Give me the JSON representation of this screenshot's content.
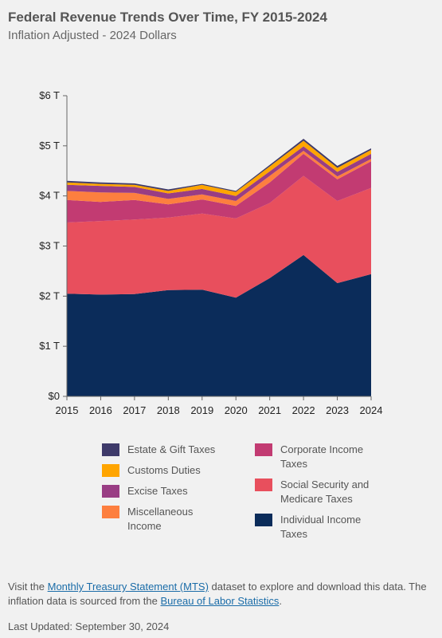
{
  "chart_data": {
    "type": "area",
    "stacked": true,
    "title": "Federal Revenue Trends Over Time, FY 2015-2024",
    "subtitle": "Inflation Adjusted - 2024 Dollars",
    "x": [
      "2015",
      "2016",
      "2017",
      "2018",
      "2019",
      "2020",
      "2021",
      "2022",
      "2023",
      "2024"
    ],
    "y_ticks": [
      "$0",
      "$1 T",
      "$2 T",
      "$3 T",
      "$4 T",
      "$5 T",
      "$6 T"
    ],
    "ylim": [
      0,
      6
    ],
    "grid": false,
    "legend_position": "bottom",
    "series": [
      {
        "name": "Individual Income Taxes",
        "color": "#0b2c5a",
        "values": [
          2.05,
          2.03,
          2.04,
          2.12,
          2.13,
          1.97,
          2.36,
          2.82,
          2.26,
          2.44
        ]
      },
      {
        "name": "Social Security and Medicare Taxes",
        "color": "#e84f5d",
        "values": [
          1.42,
          1.47,
          1.49,
          1.45,
          1.52,
          1.58,
          1.5,
          1.58,
          1.64,
          1.72
        ]
      },
      {
        "name": "Corporate Income Taxes",
        "color": "#c23b72",
        "values": [
          0.45,
          0.38,
          0.39,
          0.26,
          0.28,
          0.25,
          0.41,
          0.44,
          0.43,
          0.53
        ]
      },
      {
        "name": "Miscellaneous Income",
        "color": "#fd7f3f",
        "values": [
          0.18,
          0.19,
          0.14,
          0.11,
          0.1,
          0.1,
          0.13,
          0.06,
          0.06,
          0.05
        ]
      },
      {
        "name": "Excise Taxes",
        "color": "#993d84",
        "values": [
          0.12,
          0.13,
          0.12,
          0.11,
          0.11,
          0.1,
          0.09,
          0.09,
          0.09,
          0.1
        ]
      },
      {
        "name": "Customs Duties",
        "color": "#ffa500",
        "values": [
          0.05,
          0.04,
          0.04,
          0.05,
          0.08,
          0.08,
          0.1,
          0.11,
          0.08,
          0.08
        ]
      },
      {
        "name": "Estate & Gift Taxes",
        "color": "#3e3a6a",
        "values": [
          0.03,
          0.03,
          0.03,
          0.03,
          0.02,
          0.02,
          0.03,
          0.04,
          0.04,
          0.03
        ]
      }
    ]
  },
  "legend": [
    {
      "label": "Estate & Gift Taxes",
      "color": "#3e3a6a"
    },
    {
      "label": "Customs Duties",
      "color": "#ffa500"
    },
    {
      "label": "Excise Taxes",
      "color": "#993d84"
    },
    {
      "label": "Miscellaneous Income",
      "color": "#fd7f3f"
    },
    {
      "label": "Corporate Income Taxes",
      "color": "#c23b72"
    },
    {
      "label": "Social Security and Medicare Taxes",
      "color": "#e84f5d"
    },
    {
      "label": "Individual Income Taxes",
      "color": "#0b2c5a"
    }
  ],
  "footer": {
    "prefix": "Visit the ",
    "link1": "Monthly Treasury Statement (MTS)",
    "middle": " dataset to explore and download this data. The inflation data is sourced from the ",
    "link2": "Bureau of Labor Statistics",
    "suffix": ".",
    "last_updated": "Last Updated: September 30, 2024"
  }
}
